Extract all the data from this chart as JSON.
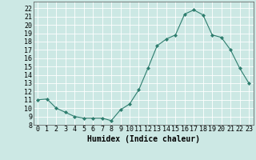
{
  "x": [
    0,
    1,
    2,
    3,
    4,
    5,
    6,
    7,
    8,
    9,
    10,
    11,
    12,
    13,
    14,
    15,
    16,
    17,
    18,
    19,
    20,
    21,
    22,
    23
  ],
  "y": [
    11,
    11.1,
    10,
    9.5,
    9,
    8.8,
    8.8,
    8.8,
    8.5,
    9.8,
    10.5,
    12.2,
    14.8,
    17.5,
    18.3,
    18.8,
    21.3,
    21.8,
    21.2,
    18.8,
    18.5,
    17,
    14.8,
    13
  ],
  "line_color": "#2e7d6e",
  "marker": "D",
  "marker_size": 2,
  "bg_color": "#cce8e4",
  "grid_color": "#ffffff",
  "xlabel": "Humidex (Indice chaleur)",
  "ylabel": "",
  "xlim": [
    -0.5,
    23.5
  ],
  "ylim": [
    8,
    22.8
  ],
  "yticks": [
    8,
    9,
    10,
    11,
    12,
    13,
    14,
    15,
    16,
    17,
    18,
    19,
    20,
    21,
    22
  ],
  "xtick_labels": [
    "0",
    "1",
    "2",
    "3",
    "4",
    "5",
    "6",
    "7",
    "8",
    "9",
    "10",
    "11",
    "12",
    "13",
    "14",
    "15",
    "16",
    "17",
    "18",
    "19",
    "20",
    "21",
    "22",
    "23"
  ],
  "label_fontsize": 7,
  "tick_fontsize": 6
}
